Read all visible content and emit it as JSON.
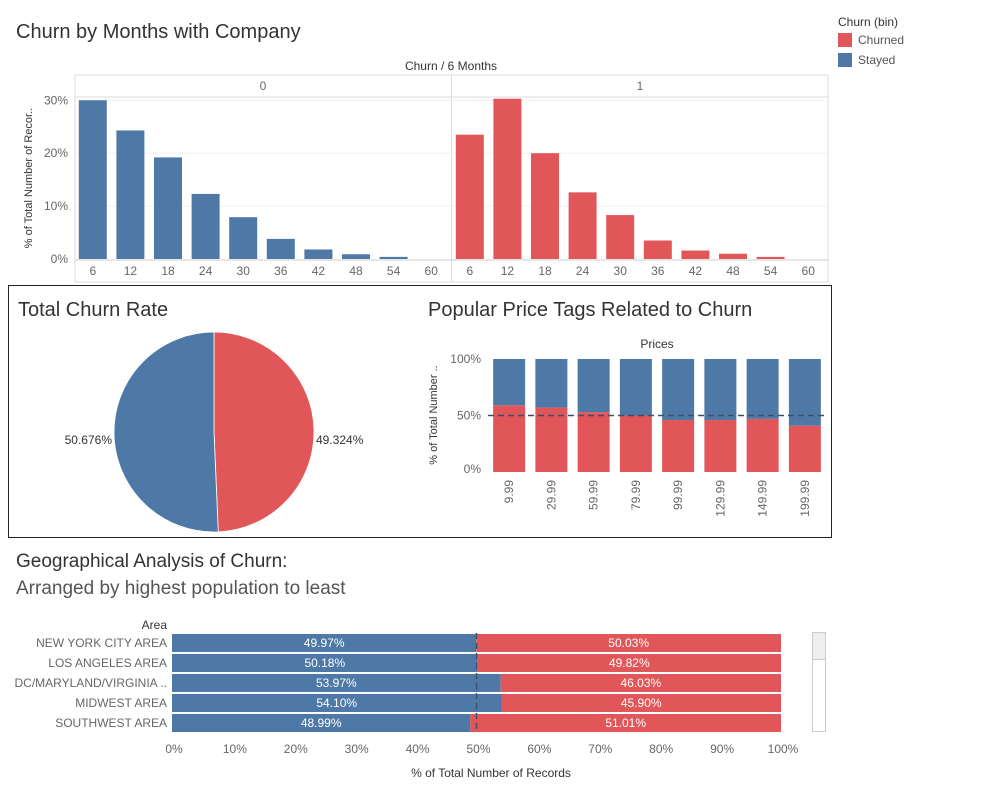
{
  "colors": {
    "churned": "#e15759",
    "stayed": "#4e79a7"
  },
  "legend": {
    "title": "Churn (bin)",
    "items": [
      {
        "label": "Churned",
        "color": "#e15759"
      },
      {
        "label": "Stayed",
        "color": "#4e79a7"
      }
    ]
  },
  "titles": {
    "months": "Churn by Months with Company",
    "churn_rate": "Total Churn Rate",
    "price": "Popular Price Tags Related to Churn",
    "geo_line1": "Geographical Analysis of Churn:",
    "geo_line2": "Arranged by highest population to least"
  },
  "chart_data": [
    {
      "type": "bar",
      "title": "Churn by Months with Company",
      "column_header": "Churn / 6 Months",
      "ylabel": "% of Total Number of Recor..",
      "ylim": [
        0,
        31
      ],
      "yticks": [
        "0%",
        "10%",
        "20%",
        "30%"
      ],
      "categories": [
        "6",
        "12",
        "18",
        "24",
        "30",
        "36",
        "42",
        "48",
        "54",
        "60"
      ],
      "series": [
        {
          "name": "0",
          "values": [
            30.0,
            24.3,
            19.2,
            12.3,
            7.9,
            3.8,
            1.8,
            0.9,
            0.4,
            0.0
          ]
        },
        {
          "name": "1",
          "values": [
            23.5,
            30.3,
            20.0,
            12.6,
            8.3,
            3.5,
            1.6,
            1.0,
            0.4,
            0.0
          ]
        }
      ]
    },
    {
      "type": "pie",
      "title": "Total Churn Rate",
      "slices": [
        {
          "name": "Churned",
          "value": 49.324,
          "label": "49.324%"
        },
        {
          "name": "Stayed",
          "value": 50.676,
          "label": "50.676%"
        }
      ]
    },
    {
      "type": "bar",
      "stacked": true,
      "title": "Popular Price Tags Related to Churn",
      "column_header": "Prices",
      "ylabel": "% of Total Number ..",
      "ylim": [
        0,
        100
      ],
      "yticks": [
        "0%",
        "50%",
        "100%"
      ],
      "reference_line": 50,
      "categories": [
        "9.99",
        "29.99",
        "59.99",
        "79.99",
        "99.99",
        "129.99",
        "149.99",
        "199.99"
      ],
      "series": [
        {
          "name": "Churned",
          "values": [
            59,
            57,
            53,
            50,
            46,
            46,
            47,
            41
          ]
        },
        {
          "name": "Stayed",
          "values": [
            41,
            43,
            47,
            50,
            54,
            54,
            53,
            59
          ]
        }
      ]
    },
    {
      "type": "bar",
      "orientation": "horizontal",
      "stacked": true,
      "title": "Geographical Analysis of Churn:",
      "row_header": "Area",
      "xlabel": "% of Total Number of Records",
      "xlim": [
        0,
        100
      ],
      "xticks": [
        "0%",
        "10%",
        "20%",
        "30%",
        "40%",
        "50%",
        "60%",
        "70%",
        "80%",
        "90%",
        "100%"
      ],
      "reference_line": 50,
      "categories": [
        "NEW YORK CITY AREA",
        "LOS ANGELES AREA",
        "DC/MARYLAND/VIRGINIA ..",
        "MIDWEST AREA",
        "SOUTHWEST AREA"
      ],
      "series": [
        {
          "name": "Stayed",
          "values": [
            49.97,
            50.18,
            53.97,
            54.1,
            48.99
          ],
          "labels": [
            "49.97%",
            "50.18%",
            "53.97%",
            "54.10%",
            "48.99%"
          ]
        },
        {
          "name": "Churned",
          "values": [
            50.03,
            49.82,
            46.03,
            45.9,
            51.01
          ],
          "labels": [
            "50.03%",
            "49.82%",
            "46.03%",
            "45.90%",
            "51.01%"
          ]
        }
      ]
    }
  ]
}
